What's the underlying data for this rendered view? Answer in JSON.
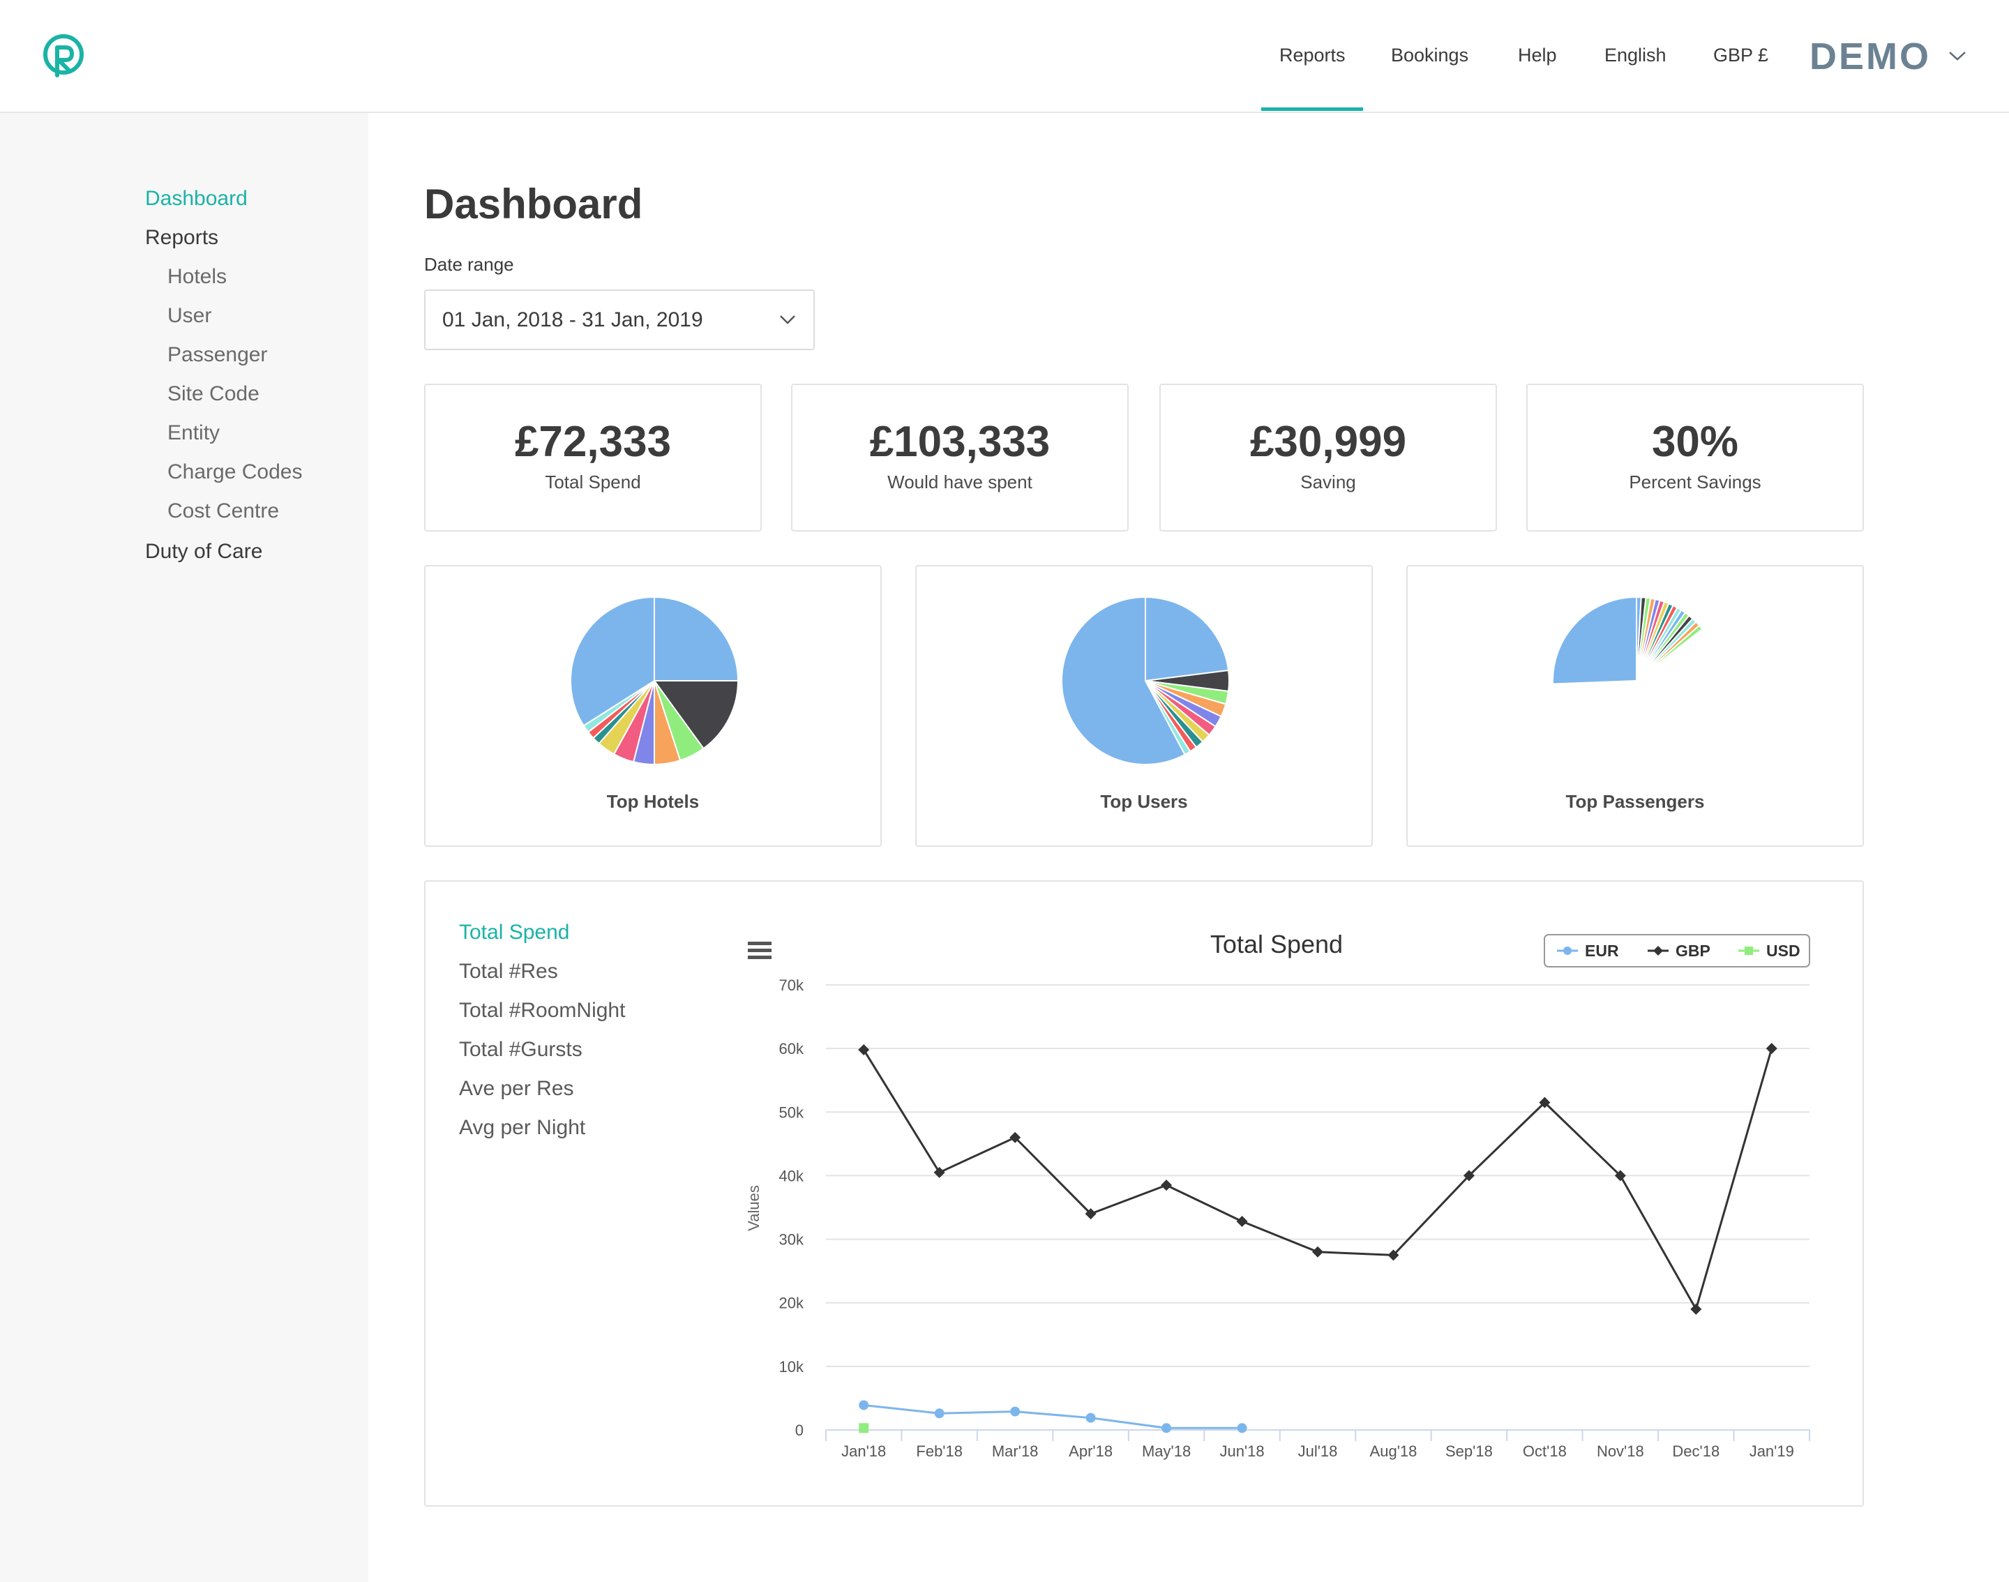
{
  "header": {
    "nav": [
      {
        "label": "Reports",
        "active": true
      },
      {
        "label": "Bookings"
      },
      {
        "label": "Help"
      },
      {
        "label": "English"
      },
      {
        "label": "GBP £"
      }
    ],
    "account_label": "DEMO",
    "accent_color": "#1ab3a6"
  },
  "sidebar": {
    "items": [
      {
        "label": "Dashboard",
        "active": true
      },
      {
        "label": "Reports"
      },
      {
        "label": "Hotels",
        "sub": true
      },
      {
        "label": "User",
        "sub": true
      },
      {
        "label": "Passenger",
        "sub": true
      },
      {
        "label": "Site Code",
        "sub": true
      },
      {
        "label": "Entity",
        "sub": true
      },
      {
        "label": "Charge Codes",
        "sub": true
      },
      {
        "label": "Cost Centre",
        "sub": true
      },
      {
        "label": "Duty of Care"
      }
    ]
  },
  "main": {
    "title": "Dashboard",
    "date_range_label": "Date range",
    "date_range_value": "01 Jan, 2018 - 31 Jan, 2019",
    "stats": [
      {
        "value": "£72,333",
        "label": "Total Spend"
      },
      {
        "value": "£103,333",
        "label": "Would have spent"
      },
      {
        "value": "£30,999",
        "label": "Saving"
      },
      {
        "value": "30%",
        "label": "Percent Savings"
      }
    ],
    "pies": [
      {
        "label": "Top Hotels",
        "slices": [
          {
            "value": 25,
            "color": "#7cb5ec"
          },
          {
            "value": 15,
            "color": "#434348"
          },
          {
            "value": 5,
            "color": "#90ed7d"
          },
          {
            "value": 5,
            "color": "#f7a35c"
          },
          {
            "value": 4,
            "color": "#8085e9"
          },
          {
            "value": 4,
            "color": "#f15c80"
          },
          {
            "value": 3.5,
            "color": "#e4d354"
          },
          {
            "value": 1.5,
            "color": "#2b908f"
          },
          {
            "value": 1.5,
            "color": "#f45b5b"
          },
          {
            "value": 1.5,
            "color": "#91e8e1"
          },
          {
            "value": 34,
            "color": "#7cb5ec"
          }
        ]
      },
      {
        "label": "Top Users",
        "slices": [
          {
            "value": 23,
            "color": "#7cb5ec"
          },
          {
            "value": 4,
            "color": "#434348"
          },
          {
            "value": 2.5,
            "color": "#90ed7d"
          },
          {
            "value": 2.5,
            "color": "#f7a35c"
          },
          {
            "value": 2.2,
            "color": "#8085e9"
          },
          {
            "value": 2,
            "color": "#f15c80"
          },
          {
            "value": 1.8,
            "color": "#e4d354"
          },
          {
            "value": 1.6,
            "color": "#2b908f"
          },
          {
            "value": 1.4,
            "color": "#f45b5b"
          },
          {
            "value": 1.2,
            "color": "#91e8e1"
          },
          {
            "value": 57.8,
            "color": "#7cb5ec"
          }
        ]
      },
      {
        "label": "Top Passengers",
        "slices": [
          {
            "value": 0.9,
            "color": "#7cb5ec"
          },
          {
            "value": 0.9,
            "color": "#434348"
          },
          {
            "value": 0.9,
            "color": "#90ed7d"
          },
          {
            "value": 0.9,
            "color": "#f7a35c"
          },
          {
            "value": 0.9,
            "color": "#8085e9"
          },
          {
            "value": 0.9,
            "color": "#f15c80"
          },
          {
            "value": 0.9,
            "color": "#e4d354"
          },
          {
            "value": 0.9,
            "color": "#2b908f"
          },
          {
            "value": 0.9,
            "color": "#f45b5b"
          },
          {
            "value": 0.9,
            "color": "#91e8e1"
          },
          {
            "value": 0.9,
            "color": "#7cb5ec"
          },
          {
            "value": 0.9,
            "color": "#90ed7d"
          },
          {
            "value": 0.9,
            "color": "#434348"
          },
          {
            "value": 0.9,
            "color": "#91e8e1"
          },
          {
            "value": 0.9,
            "color": "#f7a35c"
          },
          {
            "value": 0.9,
            "color": "#90ed7d"
          },
          {
            "value": 60,
            "color": "#ffffff"
          },
          {
            "value": 25.6,
            "color": "#7cb5ec"
          }
        ]
      }
    ],
    "metrics": [
      {
        "label": "Total Spend",
        "active": true
      },
      {
        "label": "Total #Res"
      },
      {
        "label": "Total #RoomNight"
      },
      {
        "label": "Total #Gursts"
      },
      {
        "label": "Ave per Res"
      },
      {
        "label": "Avg per Night"
      }
    ]
  },
  "chart_data": {
    "type": "line",
    "title": "Total Spend",
    "ylabel": "Values",
    "xlabel": "",
    "ylim": [
      0,
      70000
    ],
    "y_ticks": [
      "0",
      "10k",
      "20k",
      "30k",
      "40k",
      "50k",
      "60k",
      "70k"
    ],
    "categories": [
      "Jan'18",
      "Feb'18",
      "Mar'18",
      "Apr'18",
      "May'18",
      "Jun'18",
      "Jul'18",
      "Aug'18",
      "Sep'18",
      "Oct'18",
      "Nov'18",
      "Dec'18",
      "Jan'19"
    ],
    "legend_position": "top-right",
    "series": [
      {
        "name": "EUR",
        "color": "#7cb5ec",
        "marker": "circle",
        "values": [
          3900,
          2600,
          2900,
          1900,
          300,
          300,
          null,
          null,
          null,
          null,
          null,
          null,
          null
        ]
      },
      {
        "name": "GBP",
        "color": "#333333",
        "marker": "diamond",
        "values": [
          59800,
          40500,
          46000,
          34000,
          38500,
          32800,
          28000,
          27500,
          40000,
          51500,
          40000,
          19000,
          60000
        ]
      },
      {
        "name": "USD",
        "color": "#90ed7d",
        "marker": "square",
        "values": [
          300,
          null,
          null,
          null,
          null,
          null,
          null,
          null,
          null,
          null,
          null,
          null,
          null
        ]
      }
    ]
  }
}
